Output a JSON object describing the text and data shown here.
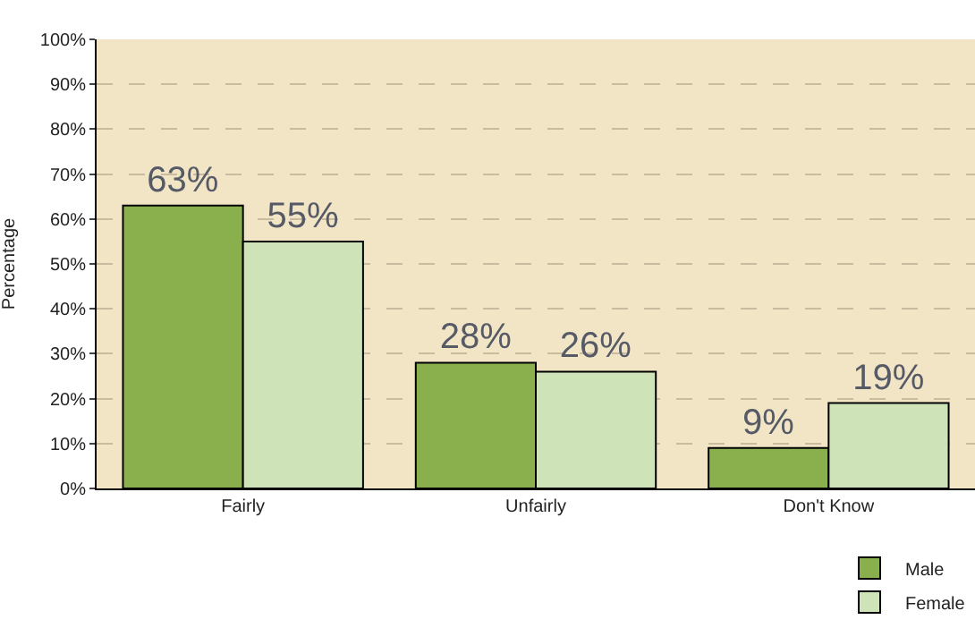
{
  "chart_data": {
    "type": "bar",
    "ylabel": "Percentage",
    "categories": [
      "Fairly",
      "Unfairly",
      "Don't Know"
    ],
    "series": [
      {
        "name": "Male",
        "color": "#8ab04e",
        "values": [
          63,
          28,
          9
        ],
        "value_labels": [
          "63%",
          "28%",
          "9%"
        ]
      },
      {
        "name": "Female",
        "color": "#cfe3b9",
        "values": [
          55,
          26,
          19
        ],
        "value_labels": [
          "55%",
          "26%",
          "19%"
        ]
      }
    ],
    "ylim": [
      0,
      100
    ],
    "yticks": [
      {
        "value": 0,
        "label": "0%"
      },
      {
        "value": 10,
        "label": "10%"
      },
      {
        "value": 20,
        "label": "20%"
      },
      {
        "value": 30,
        "label": "30%"
      },
      {
        "value": 40,
        "label": "40%"
      },
      {
        "value": 50,
        "label": "50%"
      },
      {
        "value": 60,
        "label": "60%"
      },
      {
        "value": 70,
        "label": "70%"
      },
      {
        "value": 80,
        "label": "80%"
      },
      {
        "value": 90,
        "label": "90%"
      },
      {
        "value": 100,
        "label": "100%"
      }
    ],
    "grid": "y",
    "legend": "bottom right"
  }
}
